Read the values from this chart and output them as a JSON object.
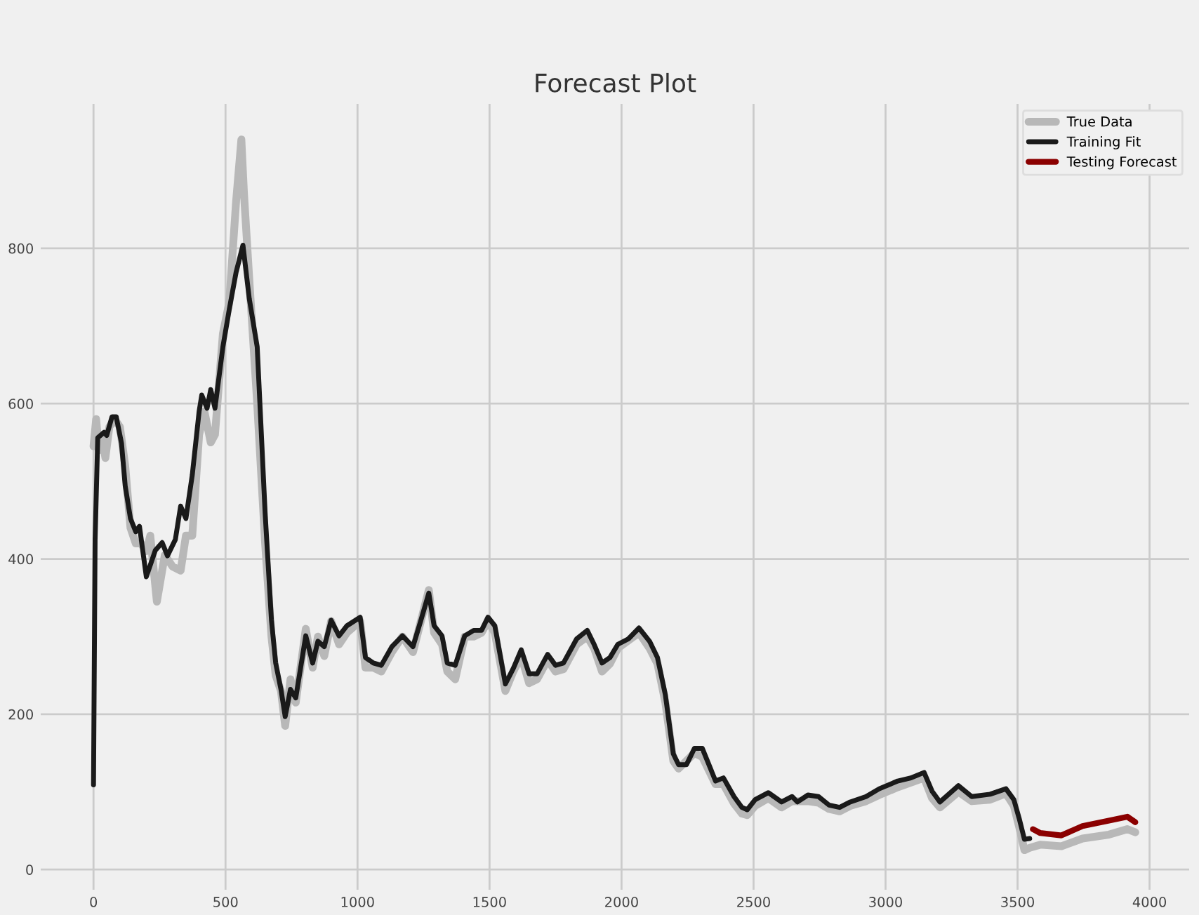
{
  "chart_data": {
    "type": "line",
    "title": "Forecast Plot",
    "xlim": [
      -200,
      4150
    ],
    "ylim": [
      -26,
      986
    ],
    "xticks": [
      0,
      500,
      1000,
      1500,
      2000,
      2500,
      3000,
      3500,
      4000
    ],
    "yticks": [
      0,
      200,
      400,
      600,
      800
    ],
    "grid": true,
    "legend": "top right",
    "line_style": "solid",
    "marker": "none",
    "series": [
      {
        "name": "True Data",
        "color": "#b8b8b8",
        "x": [
          0,
          10,
          20,
          30,
          45,
          60,
          80,
          100,
          120,
          140,
          160,
          180,
          200,
          215,
          240,
          270,
          300,
          330,
          350,
          374,
          400,
          420,
          444,
          460,
          490,
          514,
          540,
          550,
          560,
          570,
          590,
          620,
          650,
          674,
          690,
          710,
          726,
          746,
          766,
          804,
          830,
          850,
          874,
          900,
          930,
          960,
          1010,
          1030,
          1060,
          1090,
          1130,
          1170,
          1210,
          1240,
          1270,
          1290,
          1320,
          1340,
          1370,
          1406,
          1440,
          1470,
          1494,
          1520,
          1560,
          1590,
          1620,
          1650,
          1680,
          1720,
          1750,
          1780,
          1830,
          1870,
          1896,
          1926,
          1956,
          1986,
          2026,
          2066,
          2106,
          2136,
          2166,
          2196,
          2216,
          2246,
          2276,
          2306,
          2356,
          2386,
          2426,
          2456,
          2476,
          2506,
          2556,
          2606,
          2646,
          2706,
          2746,
          2786,
          2826,
          2866,
          2926,
          2976,
          3046,
          3096,
          3146,
          3176,
          3206,
          3276,
          3326,
          3396,
          3456,
          3486,
          3506,
          3526,
          3546,
          3586,
          3666,
          3746,
          3846,
          3916,
          3946
        ],
        "values": [
          545,
          580,
          540,
          560,
          530,
          570,
          580,
          570,
          520,
          440,
          420,
          420,
          410,
          430,
          345,
          405,
          390,
          385,
          430,
          430,
          560,
          590,
          550,
          560,
          690,
          730,
          860,
          900,
          940,
          870,
          760,
          600,
          420,
          300,
          250,
          230,
          185,
          245,
          215,
          310,
          260,
          300,
          275,
          320,
          290,
          305,
          320,
          260,
          260,
          255,
          280,
          300,
          280,
          320,
          360,
          305,
          290,
          255,
          245,
          300,
          300,
          305,
          320,
          305,
          230,
          255,
          275,
          240,
          245,
          270,
          255,
          258,
          290,
          300,
          285,
          255,
          265,
          285,
          295,
          305,
          285,
          265,
          215,
          140,
          130,
          140,
          150,
          145,
          110,
          110,
          85,
          72,
          70,
          82,
          92,
          80,
          88,
          88,
          86,
          78,
          75,
          82,
          88,
          96,
          106,
          112,
          118,
          92,
          80,
          100,
          88,
          90,
          98,
          82,
          55,
          25,
          28,
          32,
          30,
          40,
          45,
          52,
          48
        ]
      },
      {
        "name": "Training Fit",
        "color": "#1a1a1a",
        "x": [
          0,
          6,
          16,
          40,
          50,
          70,
          86,
          106,
          120,
          140,
          160,
          174,
          200,
          220,
          234,
          260,
          280,
          310,
          330,
          350,
          374,
          400,
          410,
          430,
          444,
          460,
          490,
          514,
          540,
          566,
          590,
          620,
          650,
          674,
          690,
          710,
          726,
          746,
          766,
          804,
          830,
          850,
          874,
          900,
          930,
          960,
          1010,
          1030,
          1060,
          1090,
          1130,
          1170,
          1210,
          1240,
          1270,
          1290,
          1320,
          1340,
          1370,
          1406,
          1440,
          1470,
          1494,
          1520,
          1560,
          1590,
          1620,
          1650,
          1680,
          1720,
          1750,
          1780,
          1830,
          1870,
          1896,
          1926,
          1956,
          1986,
          2026,
          2066,
          2106,
          2136,
          2166,
          2196,
          2216,
          2246,
          2276,
          2306,
          2356,
          2386,
          2426,
          2456,
          2476,
          2506,
          2556,
          2606,
          2646,
          2666,
          2706,
          2746,
          2786,
          2826,
          2866,
          2926,
          2976,
          3046,
          3096,
          3146,
          3176,
          3206,
          3276,
          3326,
          3396,
          3456,
          3486,
          3506,
          3526,
          3546
        ],
        "values": [
          109,
          425,
          556,
          563,
          559,
          583,
          583,
          549,
          494,
          452,
          435,
          442,
          377,
          397,
          411,
          421,
          404,
          425,
          468,
          452,
          508,
          590,
          611,
          594,
          618,
          594,
          673,
          721,
          769,
          804,
          735,
          673,
          459,
          321,
          266,
          232,
          197,
          232,
          221,
          301,
          266,
          294,
          287,
          321,
          301,
          314,
          325,
          273,
          266,
          263,
          287,
          301,
          287,
          321,
          356,
          314,
          301,
          266,
          263,
          301,
          308,
          308,
          325,
          314,
          239,
          259,
          283,
          252,
          252,
          277,
          263,
          266,
          297,
          308,
          290,
          266,
          273,
          290,
          297,
          311,
          294,
          273,
          225,
          149,
          135,
          135,
          156,
          156,
          114,
          118,
          94,
          80,
          77,
          90,
          99,
          87,
          94,
          87,
          96,
          94,
          83,
          80,
          87,
          94,
          104,
          114,
          118,
          125,
          101,
          87,
          108,
          94,
          97,
          104,
          90,
          66,
          39,
          40
        ]
      },
      {
        "name": "Testing Forecast",
        "color": "#8b0000",
        "x": [
          3558,
          3586,
          3666,
          3746,
          3846,
          3916,
          3946
        ],
        "values": [
          52,
          47,
          44,
          56,
          63,
          68,
          61
        ]
      }
    ]
  }
}
